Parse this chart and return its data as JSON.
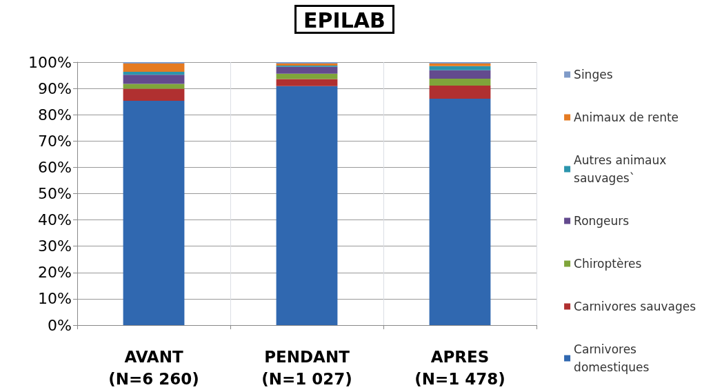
{
  "chart_data": {
    "type": "bar",
    "title": "EPILAB",
    "stacked": true,
    "categories": [
      "AVANT\n(N=6 260)",
      "PENDANT\n(N=1 027)",
      "APRES\n(N=1 478)"
    ],
    "series": [
      {
        "name": "Carnivores\ndomestiques",
        "color": "#3068b0",
        "values": [
          85.3,
          90.9,
          86.1
        ]
      },
      {
        "name": "Carnivores sauvages",
        "color": "#b03030",
        "values": [
          4.6,
          2.7,
          5.0
        ]
      },
      {
        "name": "Chiroptères",
        "color": "#7fa53a",
        "values": [
          1.8,
          2.0,
          2.6
        ]
      },
      {
        "name": "Rongeurs",
        "color": "#634a8e",
        "values": [
          3.5,
          2.6,
          3.2
        ]
      },
      {
        "name": "Autres animaux\nsauvages`",
        "color": "#2c95ad",
        "values": [
          1.1,
          0.5,
          1.6
        ]
      },
      {
        "name": "Animaux de rente",
        "color": "#e57b22",
        "values": [
          3.2,
          0.8,
          1.0
        ]
      },
      {
        "name": "Singes",
        "color": "#7f9bc8",
        "values": [
          0.5,
          0.5,
          0.5
        ]
      }
    ],
    "ylim": [
      0,
      100
    ],
    "yticks": [
      {
        "value": 0,
        "label": "0%"
      },
      {
        "value": 10,
        "label": "10%"
      },
      {
        "value": 20,
        "label": "20%"
      },
      {
        "value": 30,
        "label": "30%"
      },
      {
        "value": 40,
        "label": "40%"
      },
      {
        "value": 50,
        "label": "50%"
      },
      {
        "value": 60,
        "label": "60%"
      },
      {
        "value": 70,
        "label": "70%"
      },
      {
        "value": 80,
        "label": "80%"
      },
      {
        "value": 90,
        "label": "90%"
      },
      {
        "value": 100,
        "label": "100%"
      }
    ],
    "grid": true,
    "legend": "right"
  }
}
